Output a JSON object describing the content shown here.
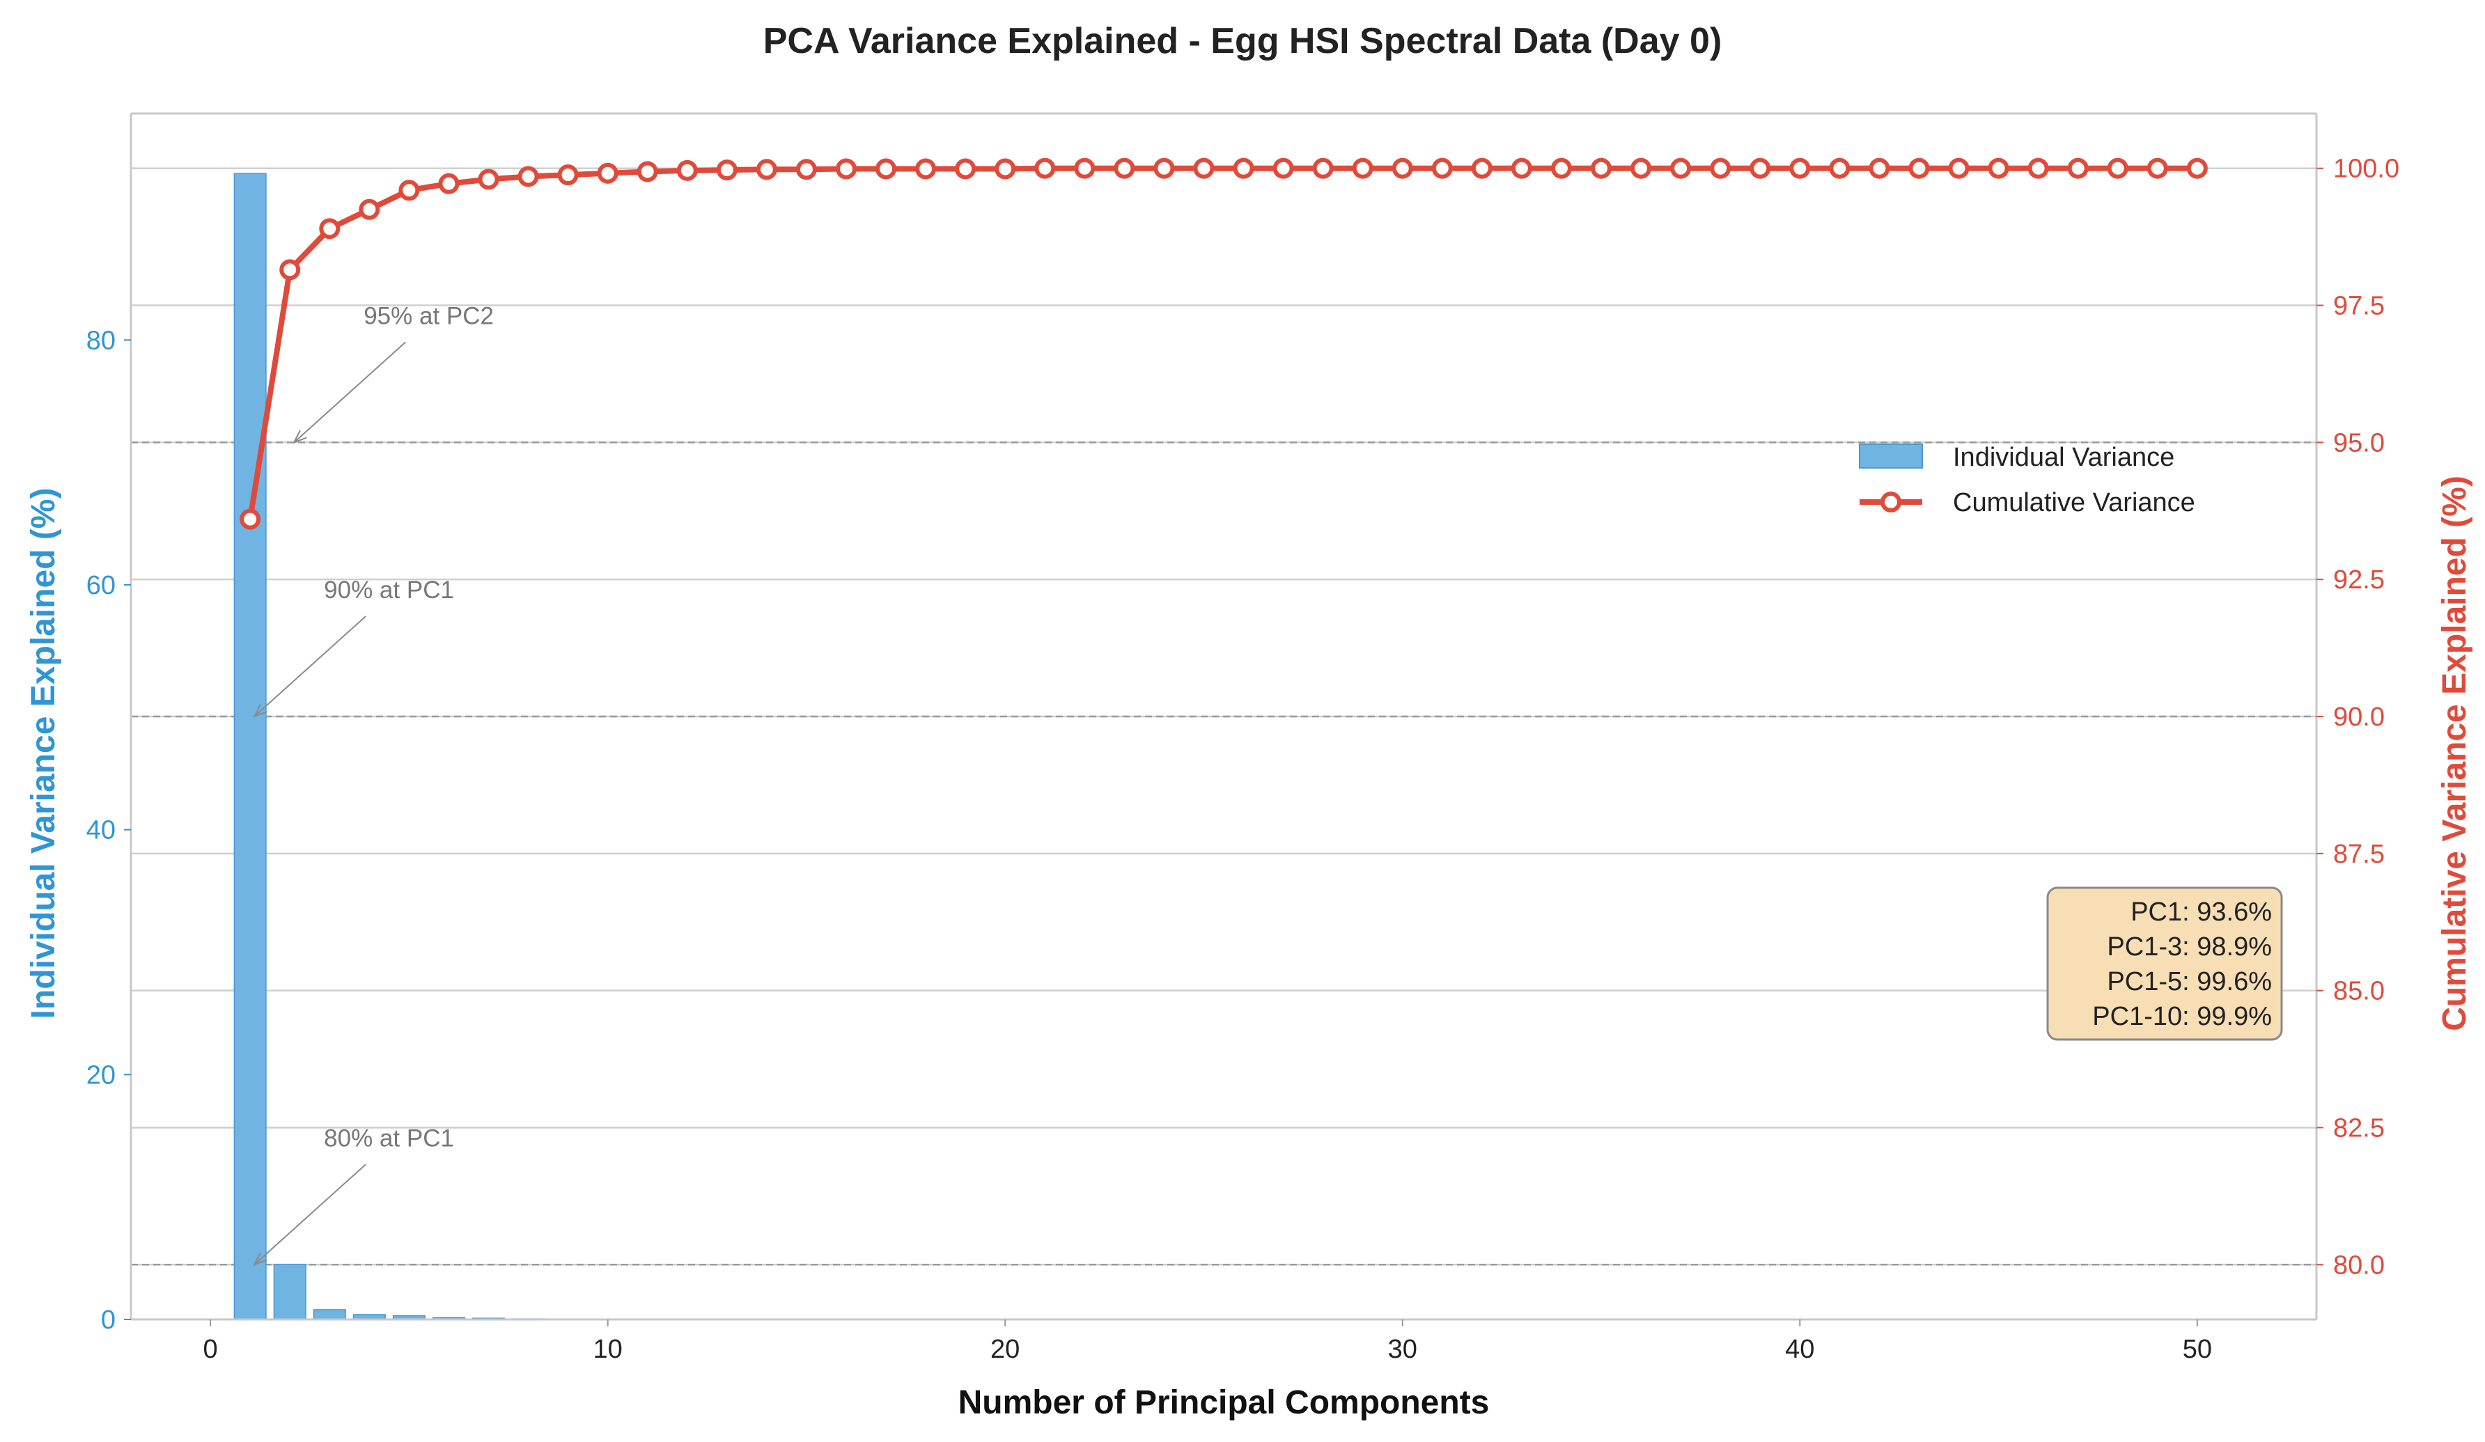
{
  "chart_data": {
    "type": "bar+line",
    "title": "PCA Variance Explained - Egg HSI Spectral Data (Day 0)",
    "xlabel": "Number of Principal Components",
    "ylabel_left": "Individual Variance Explained (%)",
    "ylabel_right": "Cumulative Variance Explained (%)",
    "xlim": [
      -2,
      53
    ],
    "ylim_left": [
      0,
      98.5
    ],
    "ylim_right": [
      79,
      101
    ],
    "x_ticks": [
      0,
      10,
      20,
      30,
      40,
      50
    ],
    "y_left_ticks": [
      0,
      20,
      40,
      60,
      80
    ],
    "y_right_ticks": [
      "80.0",
      "82.5",
      "85.0",
      "87.5",
      "90.0",
      "92.5",
      "95.0",
      "97.5",
      "100.0"
    ],
    "grid": true,
    "legend_position": "center-right",
    "colors": {
      "bar": "#6fb4e3",
      "line": "#e04a3a",
      "left_axis": "#2f95d6",
      "right_axis": "#e04a3a"
    },
    "series": [
      {
        "name": "Individual Variance",
        "type": "bar",
        "axis": "left",
        "x": [
          1,
          2,
          3,
          4,
          5,
          6,
          7,
          8,
          9,
          10
        ],
        "values": [
          93.6,
          4.5,
          0.8,
          0.4,
          0.3,
          0.15,
          0.1,
          0.05,
          0.03,
          0.02
        ]
      },
      {
        "name": "Cumulative Variance",
        "type": "line",
        "axis": "right",
        "x": [
          1,
          2,
          3,
          4,
          5,
          6,
          7,
          8,
          9,
          10,
          11,
          12,
          13,
          14,
          15,
          16,
          17,
          18,
          19,
          20,
          21,
          22,
          23,
          24,
          25,
          26,
          27,
          28,
          29,
          30,
          31,
          32,
          33,
          34,
          35,
          36,
          37,
          38,
          39,
          40,
          41,
          42,
          43,
          44,
          45,
          46,
          47,
          48,
          49,
          50
        ],
        "values": [
          93.6,
          98.15,
          98.9,
          99.25,
          99.6,
          99.72,
          99.8,
          99.85,
          99.88,
          99.91,
          99.94,
          99.96,
          99.97,
          99.98,
          99.98,
          99.99,
          99.99,
          99.99,
          99.99,
          99.99,
          100,
          100,
          100,
          100,
          100,
          100,
          100,
          100,
          100,
          100,
          100,
          100,
          100,
          100,
          100,
          100,
          100,
          100,
          100,
          100,
          100,
          100,
          100,
          100,
          100,
          100,
          100,
          100,
          100,
          100
        ]
      }
    ],
    "thresholds": [
      {
        "value": 95,
        "label": "95% at PC2",
        "pc": 2
      },
      {
        "value": 90,
        "label": "90% at PC1",
        "pc": 1
      },
      {
        "value": 80,
        "label": "80% at PC1",
        "pc": 1
      }
    ],
    "stats_box": [
      "PC1: 93.6%",
      "PC1-3: 98.9%",
      "PC1-5: 99.6%",
      "PC1-10: 99.9%"
    ]
  }
}
